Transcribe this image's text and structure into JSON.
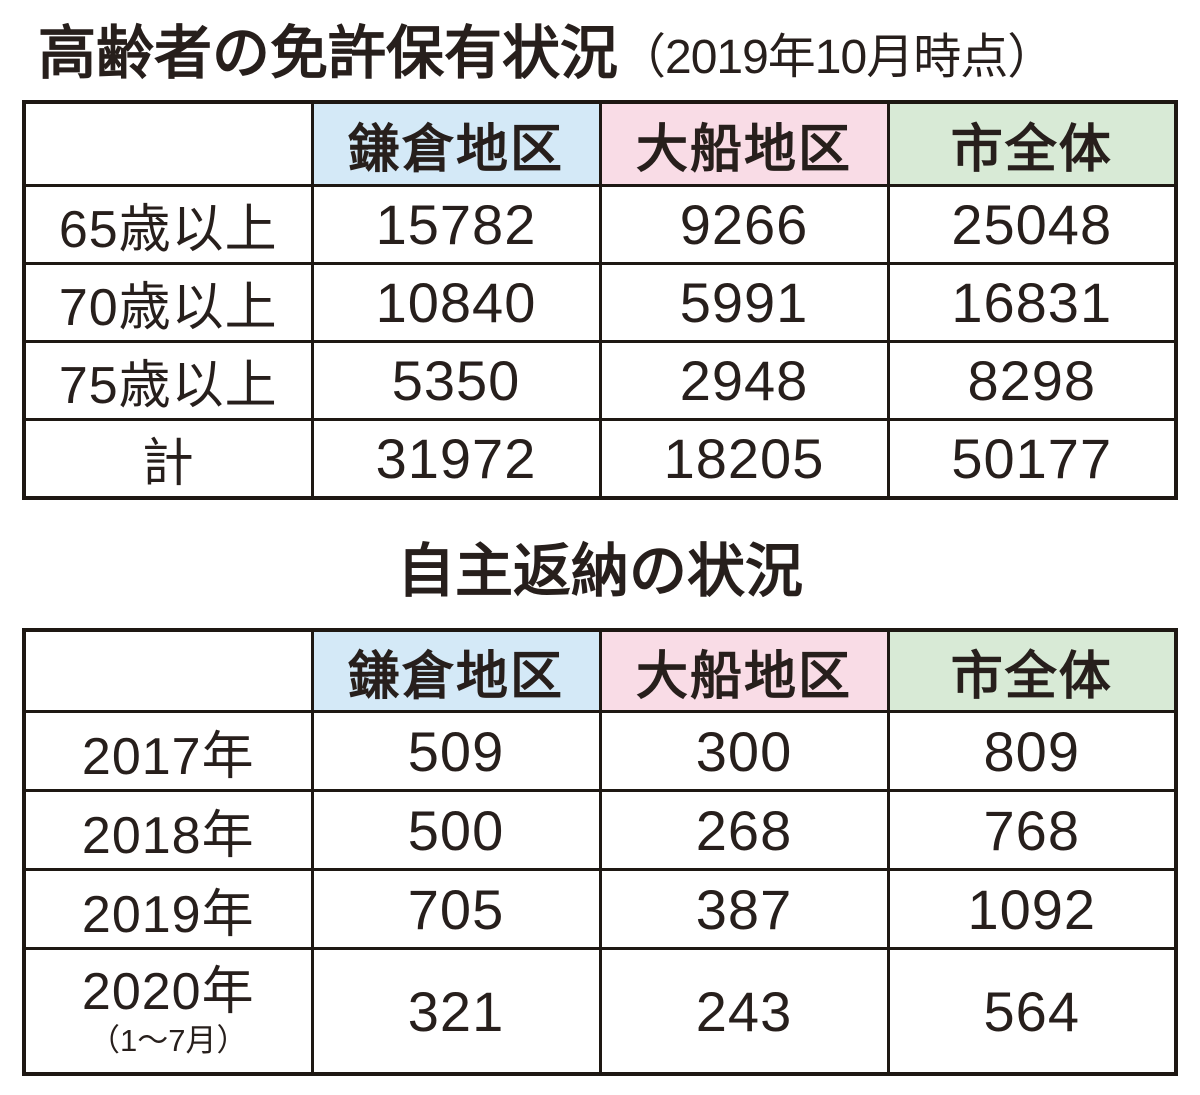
{
  "title1": {
    "main": "高齢者の免許保有状況",
    "sub": "（2019年10月時点）"
  },
  "title2": "自主返納の状況",
  "columns": [
    "鎌倉地区",
    "大船地区",
    "市全体"
  ],
  "colors": {
    "kamakura_bg": "#d4e9f7",
    "ofuna_bg": "#f9dce6",
    "city_bg": "#d8ead6",
    "ink": "#271f1c",
    "border": "#1e1813"
  },
  "license_table": {
    "rows": [
      {
        "label": "65歳以上",
        "values": [
          15782,
          9266,
          25048
        ]
      },
      {
        "label": "70歳以上",
        "values": [
          10840,
          5991,
          16831
        ]
      },
      {
        "label": "75歳以上",
        "values": [
          5350,
          2948,
          8298
        ]
      },
      {
        "label": "計",
        "values": [
          31972,
          18205,
          50177
        ]
      }
    ]
  },
  "return_table": {
    "rows": [
      {
        "label": "2017年",
        "values": [
          509,
          300,
          809
        ]
      },
      {
        "label": "2018年",
        "values": [
          500,
          268,
          768
        ]
      },
      {
        "label": "2019年",
        "values": [
          705,
          387,
          1092
        ]
      },
      {
        "label": "2020年",
        "label_sub": "（1～7月）",
        "values": [
          321,
          243,
          564
        ]
      }
    ]
  },
  "chart_data": [
    {
      "type": "table",
      "title": "高齢者の免許保有状況（2019年10月時点）",
      "categories": [
        "65歳以上",
        "70歳以上",
        "75歳以上",
        "計"
      ],
      "series": [
        {
          "name": "鎌倉地区",
          "values": [
            15782,
            10840,
            5350,
            31972
          ]
        },
        {
          "name": "大船地区",
          "values": [
            9266,
            5991,
            2948,
            18205
          ]
        },
        {
          "name": "市全体",
          "values": [
            25048,
            16831,
            8298,
            50177
          ]
        }
      ]
    },
    {
      "type": "table",
      "title": "自主返納の状況",
      "categories": [
        "2017年",
        "2018年",
        "2019年",
        "2020年（1～7月）"
      ],
      "series": [
        {
          "name": "鎌倉地区",
          "values": [
            509,
            500,
            705,
            321
          ]
        },
        {
          "name": "大船地区",
          "values": [
            300,
            268,
            387,
            243
          ]
        },
        {
          "name": "市全体",
          "values": [
            809,
            768,
            1092,
            564
          ]
        }
      ]
    }
  ]
}
